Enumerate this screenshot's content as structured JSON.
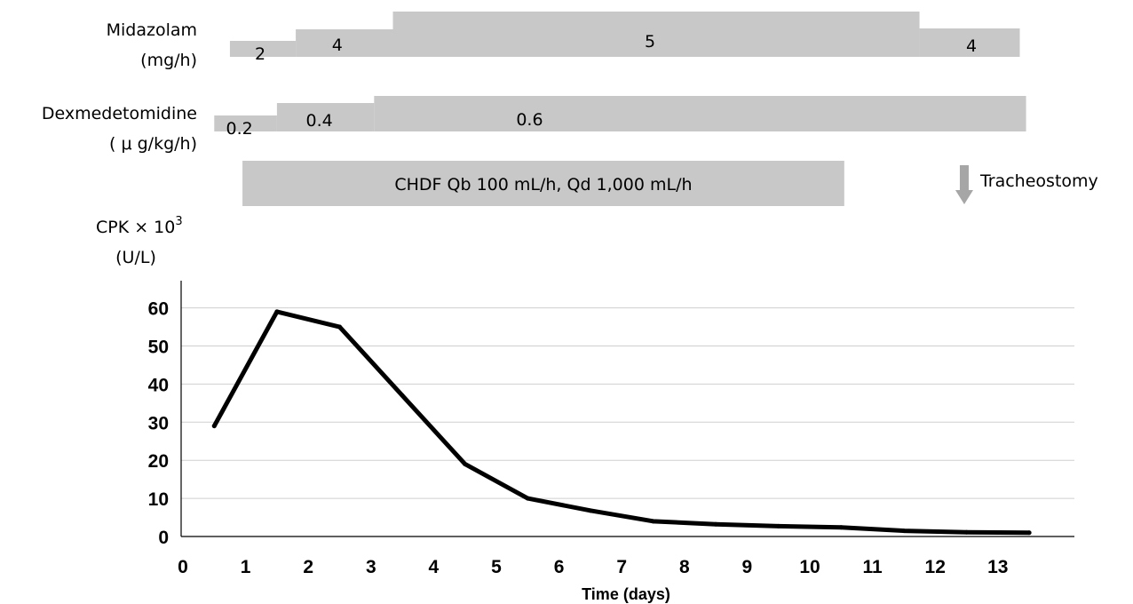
{
  "colors": {
    "bar": "#c8c8c8",
    "line": "#000000",
    "grid": "#cfcfcf",
    "arrow": "#a6a6a6"
  },
  "rows": {
    "midazolam": {
      "label_line1": "Midazolam",
      "label_line2": "(mg/h)",
      "segments": [
        {
          "start": 0.75,
          "end": 1.8,
          "value": "2"
        },
        {
          "start": 1.8,
          "end": 3.35,
          "value": "4"
        },
        {
          "start": 3.35,
          "end": 11.75,
          "value": "5"
        },
        {
          "start": 11.75,
          "end": 13.35,
          "value": "4"
        }
      ]
    },
    "dexmedetomidine": {
      "label_line1": "Dexmedetomidine",
      "label_line2": "( μ g/kg/h)",
      "segments": [
        {
          "start": 0.5,
          "end": 1.5,
          "value": "0.2"
        },
        {
          "start": 1.5,
          "end": 3.05,
          "value": "0.4"
        },
        {
          "start": 3.05,
          "end": 13.45,
          "value": "0.6"
        }
      ]
    },
    "chdf": {
      "label": "CHDF Qb 100 mL/h, Qd 1,000 mL/h",
      "start": 0.95,
      "end": 10.55
    }
  },
  "events": [
    {
      "label": "Tracheostomy",
      "day": 12.45
    }
  ],
  "chart_data": {
    "type": "line",
    "ylabel_line1": "CPK × 10",
    "ylabel_sup": "3",
    "ylabel_line2": "(U/L)",
    "xlabel": "Time (days)",
    "xlim": [
      0,
      14
    ],
    "ylim": [
      0,
      65
    ],
    "xticks": [
      0,
      1,
      2,
      3,
      4,
      5,
      6,
      7,
      8,
      9,
      10,
      11,
      12,
      13
    ],
    "yticks": [
      0,
      10,
      20,
      30,
      40,
      50,
      60
    ],
    "grid": true,
    "series": [
      {
        "x": [
          0.5,
          1.5,
          2.5,
          3.5,
          4.5,
          5.5,
          6.5,
          7.5,
          8.5,
          9.5,
          10.5,
          11.5,
          12.5,
          13.5
        ],
        "y": [
          29,
          59,
          55,
          37,
          19,
          10,
          6.8,
          4,
          3.2,
          2.7,
          2.4,
          1.5,
          1.1,
          1.0
        ]
      }
    ]
  }
}
